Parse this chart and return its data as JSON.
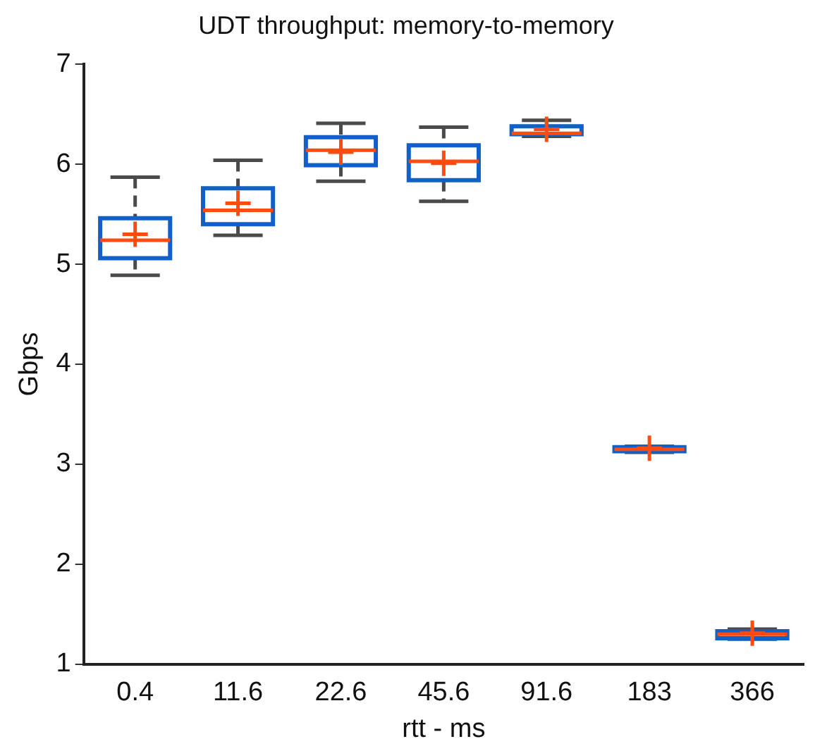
{
  "chart_data": {
    "type": "box",
    "title": "UDT throughput: memory-to-memory",
    "xlabel": "rtt - ms",
    "ylabel": "Gbps",
    "categories": [
      "0.4",
      "11.6",
      "22.6",
      "45.6",
      "91.6",
      "183",
      "366"
    ],
    "color": "#1060c8",
    "boxes": [
      {
        "low": 4.89,
        "q1": 5.06,
        "median": 5.24,
        "q3": 5.46,
        "high": 5.87,
        "mean": 5.3
      },
      {
        "low": 5.29,
        "q1": 5.4,
        "median": 5.54,
        "q3": 5.76,
        "high": 6.04,
        "mean": 5.61
      },
      {
        "low": 5.83,
        "q1": 5.99,
        "median": 6.14,
        "q3": 6.27,
        "high": 6.41,
        "mean": 6.12
      },
      {
        "low": 5.63,
        "q1": 5.84,
        "median": 6.03,
        "q3": 6.19,
        "high": 6.37,
        "mean": 6.01
      },
      {
        "low": 6.28,
        "q1": 6.3,
        "median": 6.31,
        "q3": 6.38,
        "high": 6.44,
        "mean": 6.35
      },
      {
        "low": 3.12,
        "q1": 3.13,
        "median": 3.15,
        "q3": 3.17,
        "high": 3.18,
        "mean": 3.16
      },
      {
        "low": 1.25,
        "q1": 1.26,
        "median": 1.3,
        "q3": 1.33,
        "high": 1.35,
        "mean": 1.31
      }
    ],
    "ylim": [
      1,
      7
    ],
    "yticks": [
      1,
      2,
      3,
      4,
      5,
      6,
      7
    ],
    "grid": false,
    "legend": false
  }
}
